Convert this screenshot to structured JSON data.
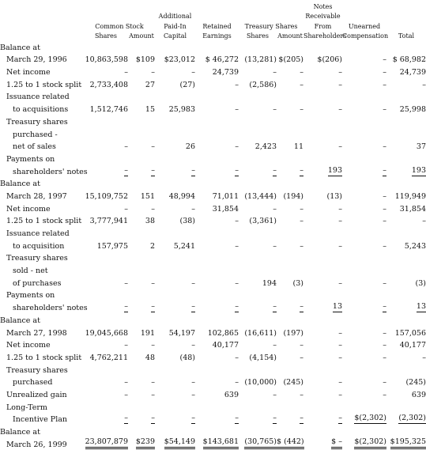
{
  "header": {
    "r1": [
      "",
      "",
      "",
      "",
      "",
      "",
      "",
      "Notes",
      "",
      ""
    ],
    "r2": [
      "",
      "",
      "",
      "Additional",
      "",
      "",
      "",
      "Receivable",
      "",
      ""
    ],
    "r3": [
      "",
      "Common Stock",
      "",
      "Paid-In",
      "Retained",
      "Treasury Shares",
      "",
      "From",
      "Unearned",
      ""
    ],
    "r4": [
      "",
      "Shares",
      "Amount",
      "Capital",
      "Earnings",
      "Shares",
      "Amount",
      "Shareholders",
      "Compensation",
      "Total"
    ]
  },
  "rows": [
    {
      "label": "Balance at",
      "indent": 0,
      "cells": [
        "",
        "",
        "",
        "",
        "",
        "",
        "",
        "",
        ""
      ]
    },
    {
      "label": "March 29, 1996",
      "indent": 1,
      "cells": [
        "10,863,598",
        "$109",
        "$23,012",
        "$ 46,272",
        "(13,281)",
        "$(205)",
        "$(206)",
        "–",
        "$ 68,982"
      ]
    },
    {
      "label": "Net income",
      "indent": 1,
      "cells": [
        "–",
        "–",
        "–",
        "24,739",
        "–",
        "–",
        "–",
        "–",
        "24,739"
      ]
    },
    {
      "label": "1.25 to 1 stock split",
      "indent": 1,
      "cells": [
        "2,733,408",
        "27",
        "(27)",
        "–",
        "(2,586)",
        "–",
        "–",
        "–",
        "–"
      ]
    },
    {
      "label": "Issuance related",
      "indent": 1,
      "cells": [
        "",
        "",
        "",
        "",
        "",
        "",
        "",
        "",
        ""
      ]
    },
    {
      "label": "to acquisitions",
      "indent": 2,
      "cells": [
        "1,512,746",
        "15",
        "25,983",
        "–",
        "–",
        "–",
        "–",
        "–",
        "25,998"
      ]
    },
    {
      "label": "Treasury shares",
      "indent": 1,
      "cells": [
        "",
        "",
        "",
        "",
        "",
        "",
        "",
        "",
        ""
      ]
    },
    {
      "label": "purchased -",
      "indent": 2,
      "cells": [
        "",
        "",
        "",
        "",
        "",
        "",
        "",
        "",
        ""
      ]
    },
    {
      "label": "net of sales",
      "indent": 2,
      "cells": [
        "–",
        "–",
        "26",
        "–",
        "2,423",
        "11",
        "–",
        "–",
        "37"
      ]
    },
    {
      "label": "Payments on",
      "indent": 1,
      "cells": [
        "",
        "",
        "",
        "",
        "",
        "",
        "",
        "",
        ""
      ]
    },
    {
      "label": "shareholders' notes",
      "indent": 2,
      "cells": [
        "–",
        "–",
        "–",
        "–",
        "–",
        "–",
        "193",
        "–",
        "193"
      ],
      "total": true
    },
    {
      "label": "Balance at",
      "indent": 0,
      "cells": [
        "",
        "",
        "",
        "",
        "",
        "",
        "",
        "",
        ""
      ]
    },
    {
      "label": "March 28, 1997",
      "indent": 1,
      "cells": [
        "15,109,752",
        "151",
        "48,994",
        "71,011",
        "(13,444)",
        "(194)",
        "(13)",
        "–",
        "119,949"
      ]
    },
    {
      "label": "Net income",
      "indent": 1,
      "cells": [
        "–",
        "–",
        "–",
        "31,854",
        "–",
        "–",
        "–",
        "–",
        "31,854"
      ]
    },
    {
      "label": "1.25 to 1 stock split",
      "indent": 1,
      "cells": [
        "3,777,941",
        "38",
        "(38)",
        "–",
        "(3,361)",
        "–",
        "–",
        "–",
        "–"
      ]
    },
    {
      "label": "Issuance related",
      "indent": 1,
      "cells": [
        "",
        "",
        "",
        "",
        "",
        "",
        "",
        "",
        ""
      ]
    },
    {
      "label": "to acquisition",
      "indent": 2,
      "cells": [
        "157,975",
        "2",
        "5,241",
        "–",
        "–",
        "–",
        "–",
        "–",
        "5,243"
      ]
    },
    {
      "label": "Treasury shares",
      "indent": 1,
      "cells": [
        "",
        "",
        "",
        "",
        "",
        "",
        "",
        "",
        ""
      ]
    },
    {
      "label": "sold - net",
      "indent": 2,
      "cells": [
        "",
        "",
        "",
        "",
        "",
        "",
        "",
        "",
        ""
      ]
    },
    {
      "label": "of purchases",
      "indent": 2,
      "cells": [
        "–",
        "–",
        "–",
        "–",
        "194",
        "(3)",
        "–",
        "–",
        "(3)"
      ]
    },
    {
      "label": "Payments on",
      "indent": 1,
      "cells": [
        "",
        "",
        "",
        "",
        "",
        "",
        "",
        "",
        ""
      ]
    },
    {
      "label": "shareholders' notes",
      "indent": 2,
      "cells": [
        "–",
        "–",
        "–",
        "–",
        "–",
        "–",
        "13",
        "–",
        "13"
      ],
      "total": true
    },
    {
      "label": "Balance at",
      "indent": 0,
      "cells": [
        "",
        "",
        "",
        "",
        "",
        "",
        "",
        "",
        ""
      ]
    },
    {
      "label": "March 27, 1998",
      "indent": 1,
      "cells": [
        "19,045,668",
        "191",
        "54,197",
        "102,865",
        "(16,611)",
        "(197)",
        "–",
        "–",
        "157,056"
      ]
    },
    {
      "label": "Net income",
      "indent": 1,
      "cells": [
        "–",
        "–",
        "–",
        "40,177",
        "–",
        "–",
        "–",
        "–",
        "40,177"
      ]
    },
    {
      "label": "1.25 to 1 stock split",
      "indent": 1,
      "cells": [
        "4,762,211",
        "48",
        "(48)",
        "–",
        "(4,154)",
        "–",
        "–",
        "–",
        "–"
      ]
    },
    {
      "label": "Treasury shares",
      "indent": 1,
      "cells": [
        "",
        "",
        "",
        "",
        "",
        "",
        "",
        "",
        ""
      ]
    },
    {
      "label": "purchased",
      "indent": 2,
      "cells": [
        "–",
        "–",
        "–",
        "–",
        "(10,000)",
        "(245)",
        "–",
        "–",
        "(245)"
      ]
    },
    {
      "label": "Unrealized gain",
      "indent": 1,
      "cells": [
        "–",
        "–",
        "–",
        "639",
        "–",
        "–",
        "–",
        "–",
        "639"
      ]
    },
    {
      "label": "Long-Term",
      "indent": 1,
      "cells": [
        "",
        "",
        "",
        "",
        "",
        "",
        "",
        "",
        ""
      ]
    },
    {
      "label": "Incentive Plan",
      "indent": 2,
      "cells": [
        "–",
        "–",
        "–",
        "–",
        "–",
        "–",
        "–",
        "$(2,302)",
        "(2,302)"
      ],
      "total": true
    },
    {
      "label": "Balance at",
      "indent": 0,
      "cells": [
        "",
        "",
        "",
        "",
        "",
        "",
        "",
        "",
        ""
      ]
    },
    {
      "label": "March 26, 1999",
      "indent": 1,
      "cells": [
        "23,807,879",
        "$239",
        "$54,149",
        "$143,681",
        "(30,765)",
        "$ (442)",
        "$    –",
        "$(2,302)",
        "$195,325"
      ],
      "final": true
    }
  ]
}
